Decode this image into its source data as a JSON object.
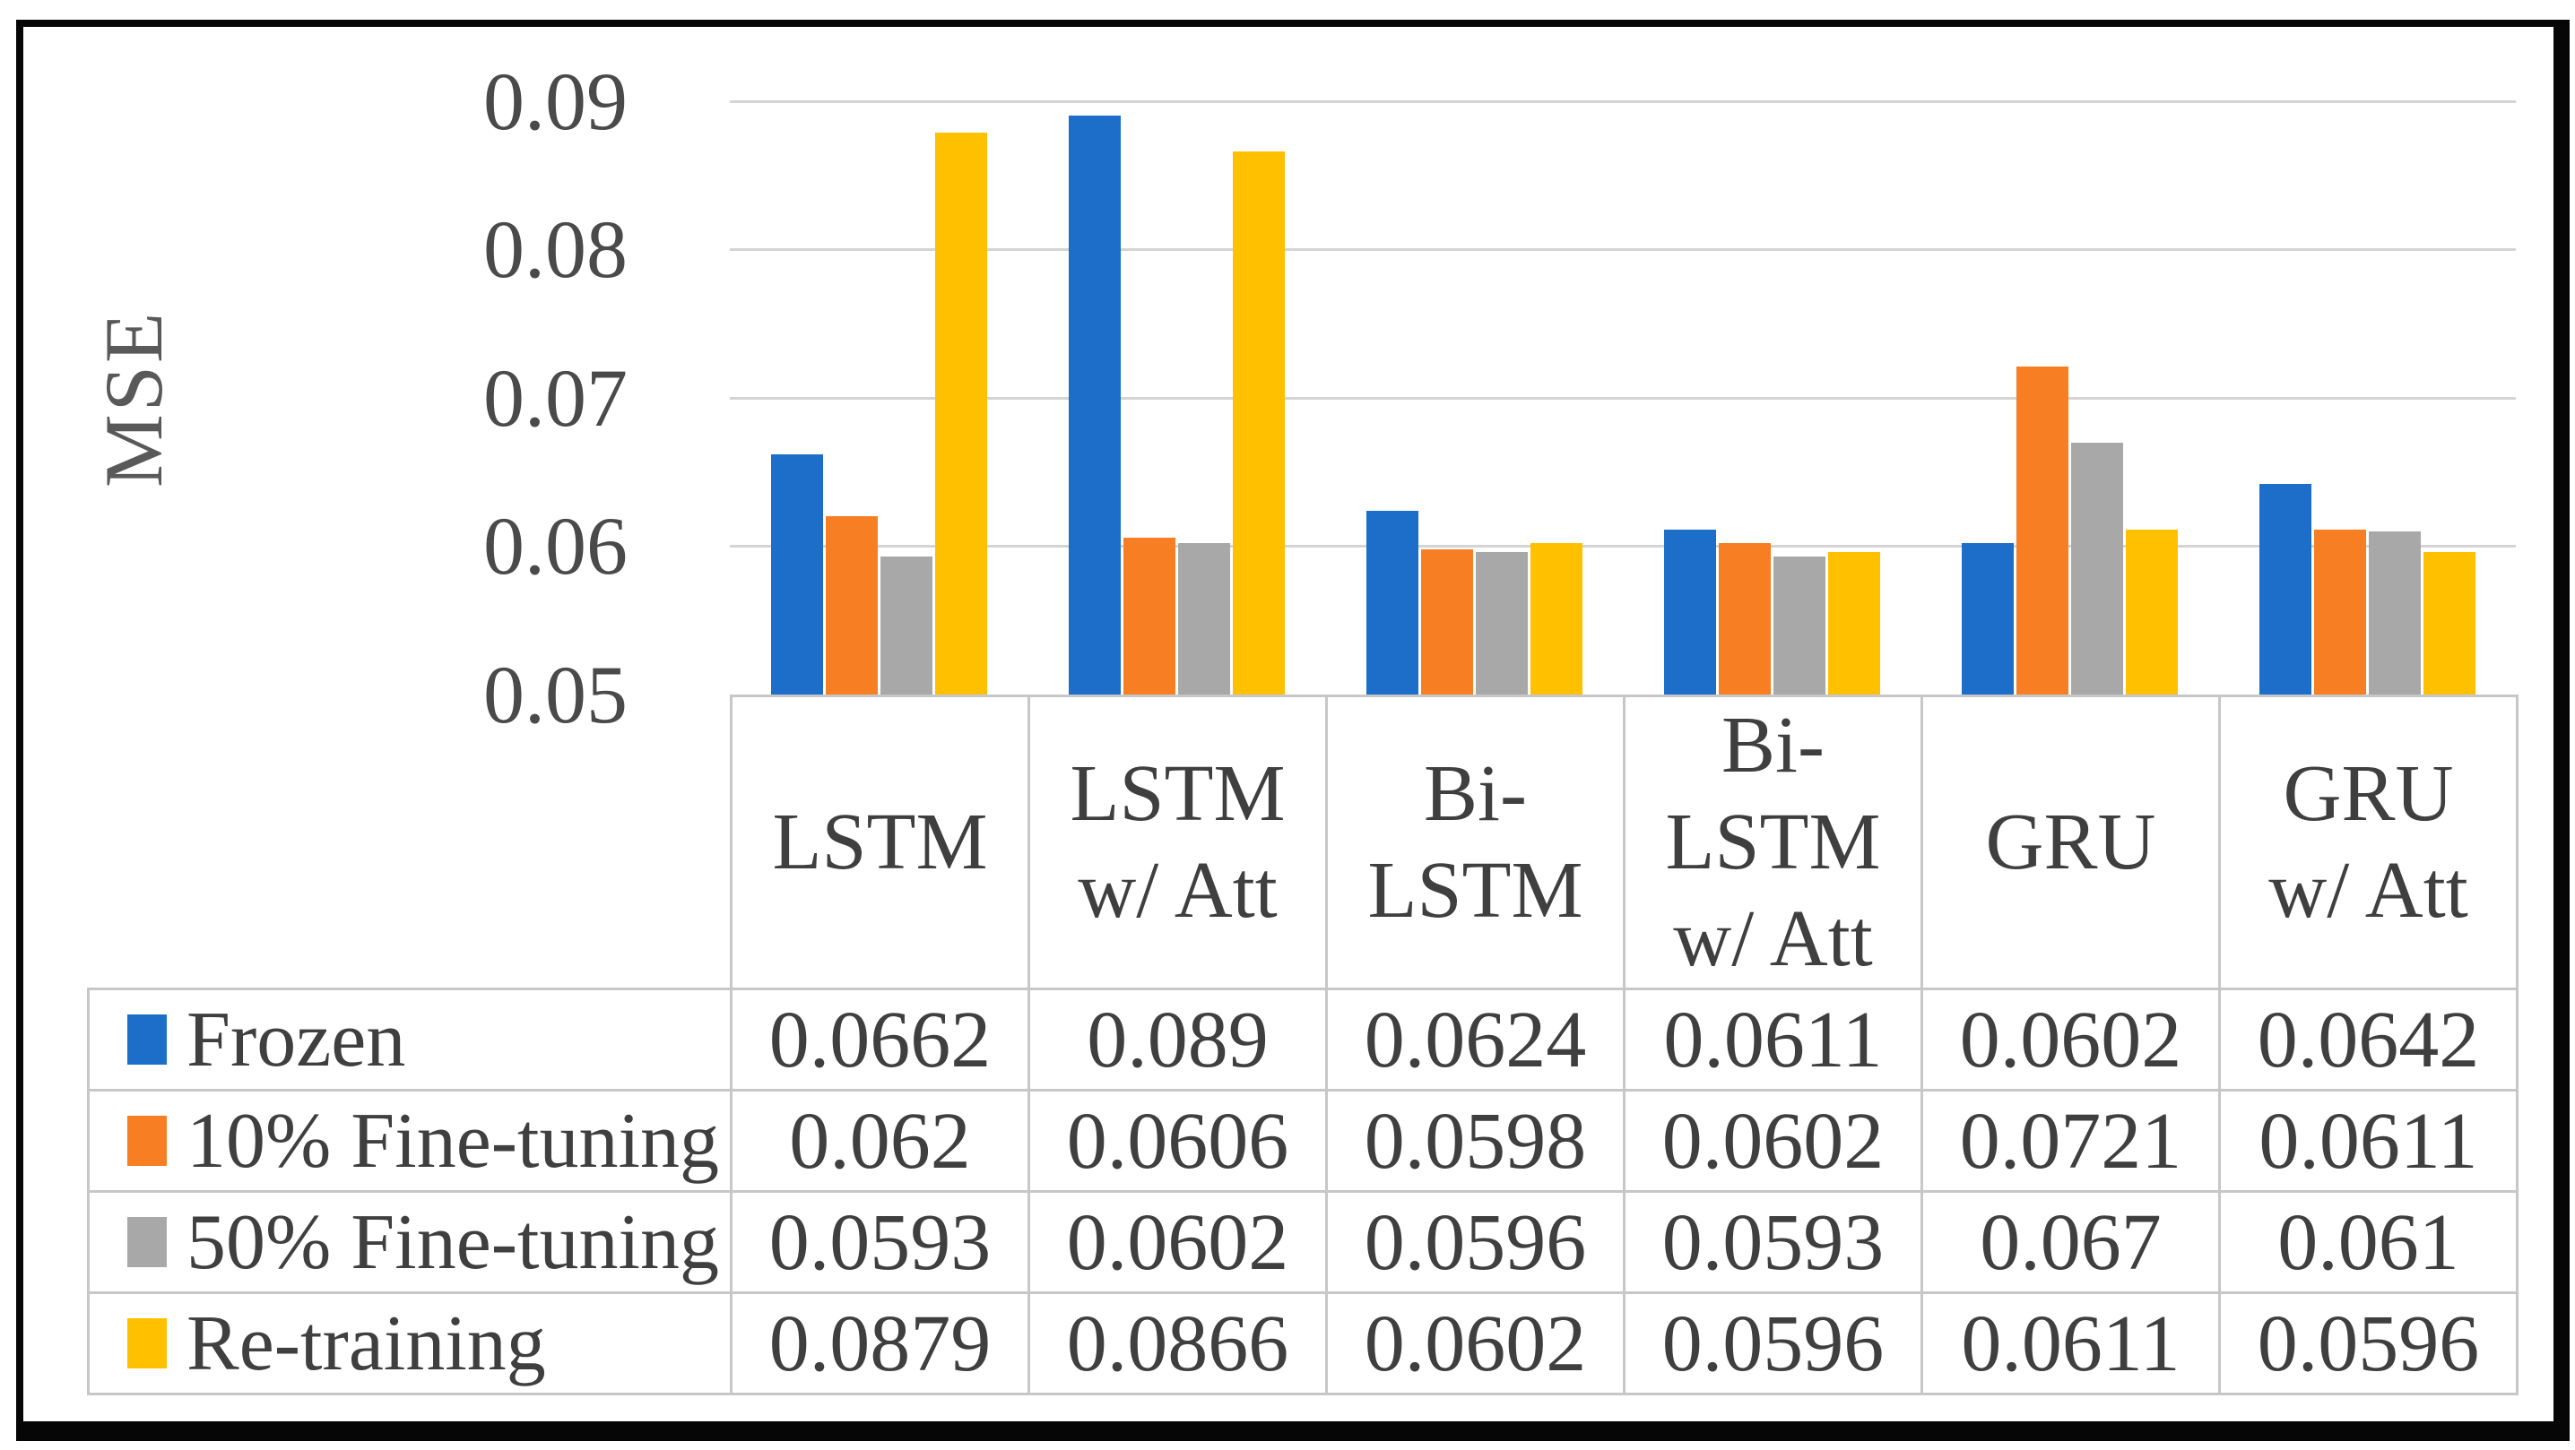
{
  "chart_data": {
    "type": "bar",
    "title": "",
    "ylabel": "MSE",
    "xlabel": "",
    "grid": true,
    "legend_position": "table-left",
    "categories": [
      "LSTM",
      "LSTM w/ Att",
      "Bi-LSTM",
      "Bi-LSTM w/ Att",
      "GRU",
      "GRU w/ Att"
    ],
    "category_lines": [
      [
        "LSTM"
      ],
      [
        "LSTM",
        "w/ Att"
      ],
      [
        "Bi-",
        "LSTM"
      ],
      [
        "Bi-",
        "LSTM",
        "w/ Att"
      ],
      [
        "GRU"
      ],
      [
        "GRU",
        "w/ Att"
      ]
    ],
    "series": [
      {
        "name": "Frozen",
        "color": "#1c6ec8",
        "values": [
          0.0662,
          0.089,
          0.0624,
          0.0611,
          0.0602,
          0.0642
        ],
        "labels": [
          "0.0662",
          "0.089",
          "0.0624",
          "0.0611",
          "0.0602",
          "0.0642"
        ]
      },
      {
        "name": "10% Fine-tuning",
        "color": "#f87e24",
        "values": [
          0.062,
          0.0606,
          0.0598,
          0.0602,
          0.0721,
          0.0611
        ],
        "labels": [
          "0.062",
          "0.0606",
          "0.0598",
          "0.0602",
          "0.0721",
          "0.0611"
        ]
      },
      {
        "name": "50% Fine-tuning",
        "color": "#a8a8a8",
        "values": [
          0.0593,
          0.0602,
          0.0596,
          0.0593,
          0.067,
          0.061
        ],
        "labels": [
          "0.0593",
          "0.0602",
          "0.0596",
          "0.0593",
          "0.067",
          "0.061"
        ]
      },
      {
        "name": "Re-training",
        "color": "#ffc000",
        "values": [
          0.0879,
          0.0866,
          0.0602,
          0.0596,
          0.0611,
          0.0596
        ],
        "labels": [
          "0.0879",
          "0.0866",
          "0.0602",
          "0.0596",
          "0.0611",
          "0.0596"
        ]
      }
    ],
    "y_axis": {
      "min": 0.05,
      "max": 0.095,
      "ticks": [
        "0.09",
        "0.08",
        "0.07",
        "0.06",
        "0.05"
      ],
      "tick_values": [
        0.09,
        0.08,
        0.07,
        0.06,
        0.05
      ]
    },
    "ylim": [
      0.05,
      0.095
    ],
    "colors": {
      "gridline": "#d4d4d4",
      "table_border": "#c7c7c7",
      "text": "#3f3f3f",
      "axis_text": "#4a4a4a",
      "frame": "#060606",
      "background": "#ffffff"
    }
  }
}
